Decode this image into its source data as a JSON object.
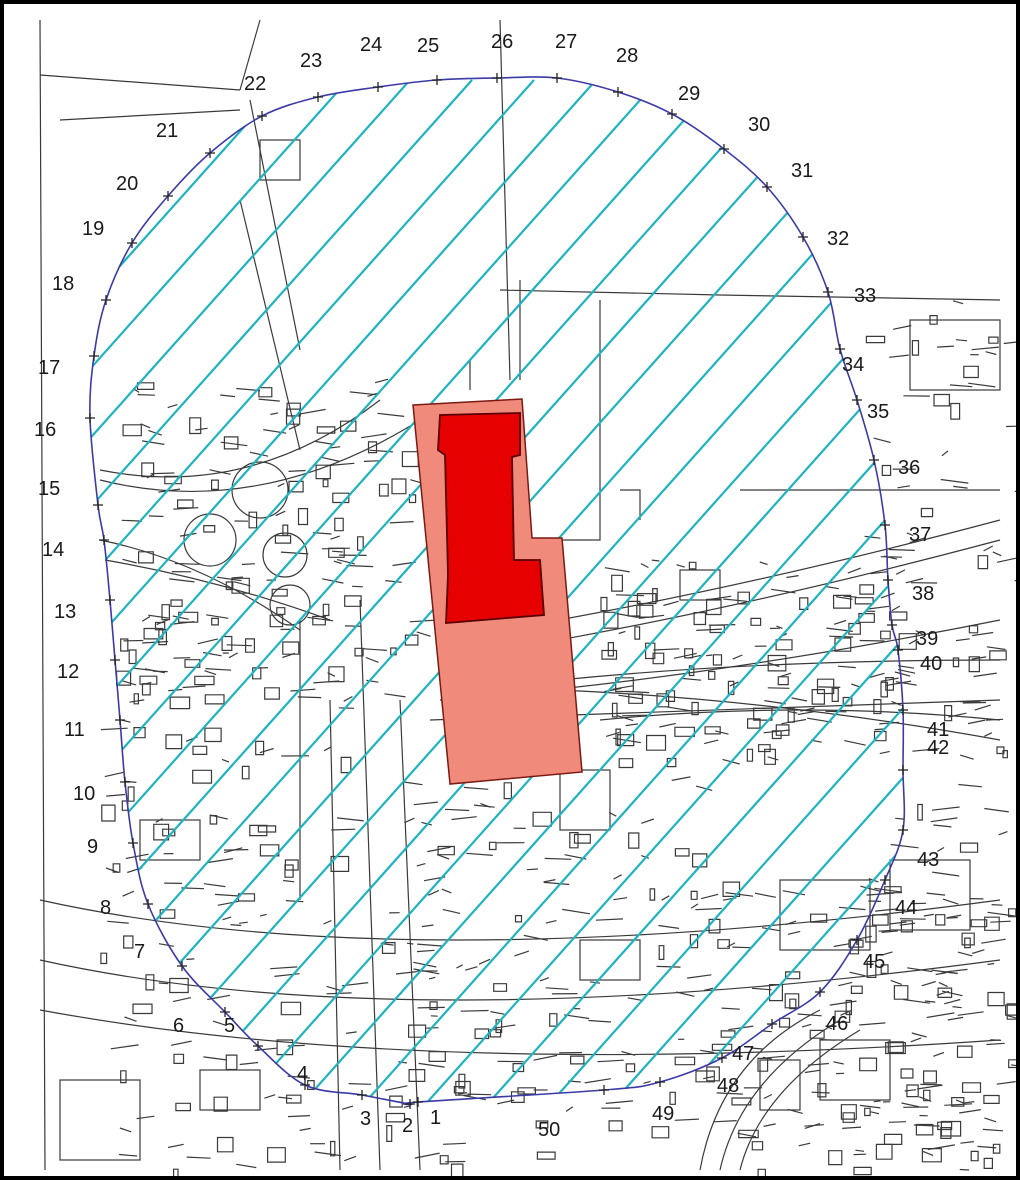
{
  "map": {
    "colors": {
      "background": "#ffffff",
      "frame": "#000000",
      "basemap_lines": "#3a3a3a",
      "zone_boundary": "#3b3ba8",
      "hatch": "#1fb3c0",
      "building_outer_fill": "#f08a7a",
      "building_outer_stroke": "#7a1a12",
      "building_inner_fill": "#e60000",
      "building_inner_stroke": "#5a0000"
    },
    "hatch_style": "diagonal lines (cyan) filling the protection zone",
    "boundary_points": [
      {
        "label": "1"
      },
      {
        "label": "2"
      },
      {
        "label": "3"
      },
      {
        "label": "4"
      },
      {
        "label": "5"
      },
      {
        "label": "6"
      },
      {
        "label": "7"
      },
      {
        "label": "8"
      },
      {
        "label": "9"
      },
      {
        "label": "10"
      },
      {
        "label": "11"
      },
      {
        "label": "12"
      },
      {
        "label": "13"
      },
      {
        "label": "14"
      },
      {
        "label": "15"
      },
      {
        "label": "16"
      },
      {
        "label": "17"
      },
      {
        "label": "18"
      },
      {
        "label": "19"
      },
      {
        "label": "20"
      },
      {
        "label": "21"
      },
      {
        "label": "22"
      },
      {
        "label": "23"
      },
      {
        "label": "24"
      },
      {
        "label": "25"
      },
      {
        "label": "26"
      },
      {
        "label": "27"
      },
      {
        "label": "28"
      },
      {
        "label": "29"
      },
      {
        "label": "30"
      },
      {
        "label": "31"
      },
      {
        "label": "32"
      },
      {
        "label": "33"
      },
      {
        "label": "34"
      },
      {
        "label": "35"
      },
      {
        "label": "36"
      },
      {
        "label": "37"
      },
      {
        "label": "38"
      },
      {
        "label": "39"
      },
      {
        "label": "40"
      },
      {
        "label": "41"
      },
      {
        "label": "42"
      },
      {
        "label": "43"
      },
      {
        "label": "44"
      },
      {
        "label": "45"
      },
      {
        "label": "46"
      },
      {
        "label": "47"
      },
      {
        "label": "48"
      },
      {
        "label": "49"
      },
      {
        "label": "50"
      }
    ]
  }
}
